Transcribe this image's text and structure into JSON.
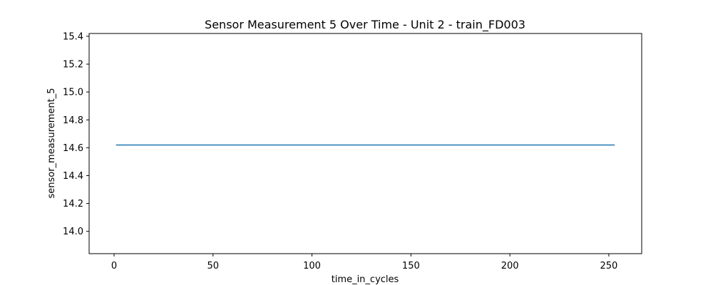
{
  "chart_data": {
    "type": "line",
    "title": "Sensor Measurement 5 Over Time - Unit 2 - train_FD003",
    "xlabel": "time_in_cycles",
    "ylabel": "sensor_measurement_5",
    "xlim": [
      -12.6,
      266.6
    ],
    "ylim": [
      13.84,
      15.42
    ],
    "x_ticks": [
      0,
      50,
      100,
      150,
      200,
      250
    ],
    "y_ticks": [
      14.0,
      14.2,
      14.4,
      14.6,
      14.8,
      15.0,
      15.2,
      15.4
    ],
    "x_tick_labels": [
      "0",
      "50",
      "100",
      "150",
      "200",
      "250"
    ],
    "y_tick_labels": [
      "14.0",
      "14.2",
      "14.4",
      "14.6",
      "14.8",
      "15.0",
      "15.2",
      "15.4"
    ],
    "grid": false,
    "series": [
      {
        "color": "#1f77b4",
        "x": [
          1,
          253
        ],
        "y": [
          14.62,
          14.62
        ]
      }
    ]
  }
}
